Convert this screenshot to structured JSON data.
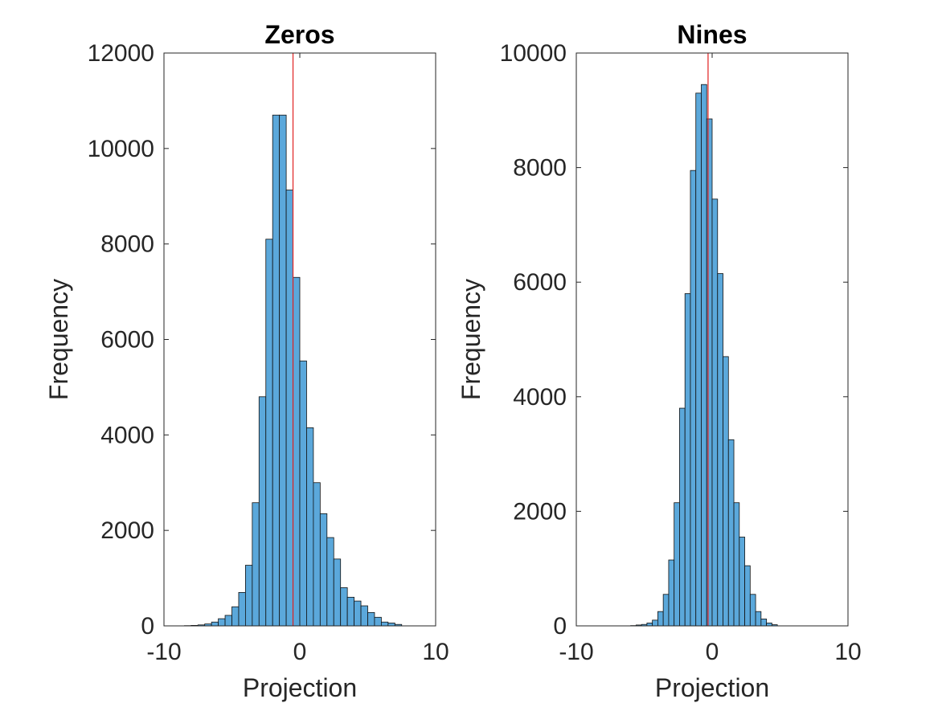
{
  "chart_data": [
    {
      "type": "bar",
      "title": "Zeros",
      "xlabel": "Projection",
      "ylabel": "Frequency",
      "xlim": [
        -10,
        10
      ],
      "ylim": [
        0,
        12000
      ],
      "xticks": [
        -10,
        0,
        10
      ],
      "yticks": [
        0,
        2000,
        4000,
        6000,
        8000,
        10000,
        12000
      ],
      "grid": false,
      "bin_edges_start": -8.5,
      "bin_width": 0.5,
      "values": [
        5,
        10,
        20,
        40,
        80,
        150,
        220,
        400,
        700,
        1270,
        2580,
        4800,
        8100,
        10700,
        10700,
        9130,
        7300,
        5550,
        4150,
        3000,
        2350,
        1850,
        1400,
        800,
        600,
        520,
        420,
        280,
        180,
        80,
        60,
        30
      ],
      "reference_line": {
        "x": -0.5,
        "color": "#e02020"
      },
      "bar_color": "#5ba8db"
    },
    {
      "type": "bar",
      "title": "Nines",
      "xlabel": "Projection",
      "ylabel": "Frequency",
      "xlim": [
        -10,
        10
      ],
      "ylim": [
        0,
        10000
      ],
      "xticks": [
        -10,
        0,
        10
      ],
      "yticks": [
        0,
        2000,
        4000,
        6000,
        8000,
        10000
      ],
      "grid": false,
      "bin_edges_start": -6,
      "bin_width": 0.4,
      "values": [
        5,
        15,
        25,
        50,
        100,
        250,
        550,
        1150,
        2150,
        3800,
        5800,
        7950,
        9300,
        9450,
        8850,
        7450,
        6150,
        4700,
        3250,
        2150,
        1550,
        1050,
        550,
        250,
        120,
        50,
        20
      ],
      "reference_line": {
        "x": -0.3,
        "color": "#e02020"
      },
      "bar_color": "#5ba8db"
    }
  ]
}
